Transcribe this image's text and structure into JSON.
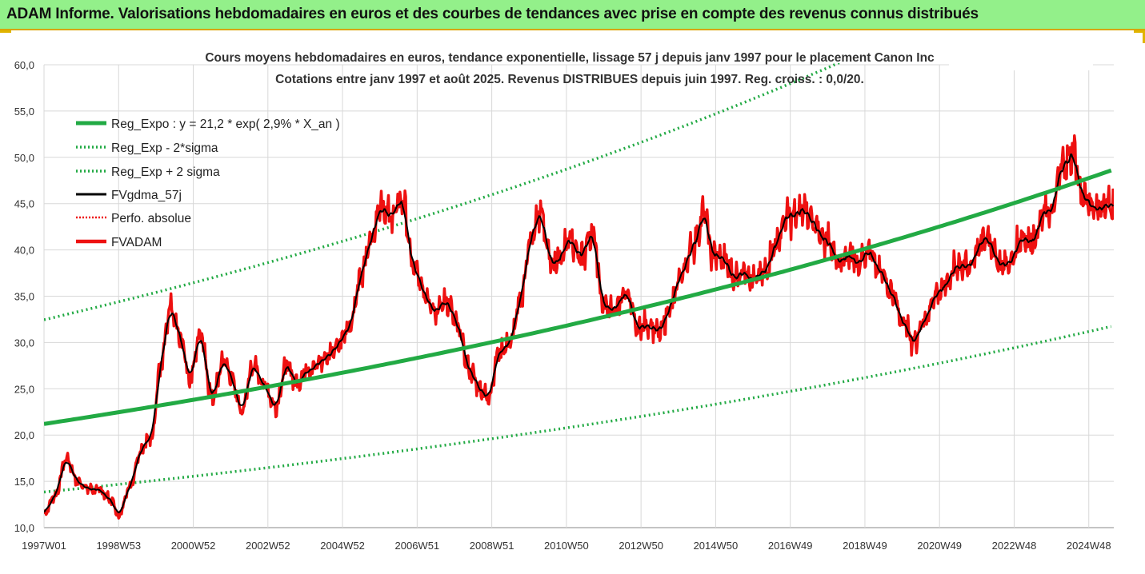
{
  "banner": {
    "title": "ADAM Informe. Valorisations hebdomadaires en euros et des courbes de tendances avec prise en compte des revenus connus distribués"
  },
  "chart_data": {
    "type": "line",
    "subtitle_lines": [
      "Cours moyens hebdomadaires en euros, tendance exponentielle, lissage 57 j depuis janv 1997 pour le placement Canon Inc",
      "Cotations entre janv 1997 et août 2025. Revenus DISTRIBUES depuis juin 1997. Reg. croiss. : 0,0/20."
    ],
    "x_tick_labels": [
      "1997W01",
      "1998W53",
      "2000W52",
      "2002W52",
      "2004W52",
      "2006W51",
      "2008W51",
      "2010W50",
      "2012W50",
      "2014W50",
      "2016W49",
      "2018W49",
      "2020W49",
      "2022W48",
      "2024W48"
    ],
    "x_range_years": [
      1997.0,
      2025.67
    ],
    "y_tick_labels": [
      "10,0",
      "15,0",
      "20,0",
      "25,0",
      "30,0",
      "35,0",
      "40,0",
      "45,0",
      "50,0",
      "55,0",
      "60,0"
    ],
    "ylim": [
      10,
      60
    ],
    "grid": true,
    "legend_position": "top-left",
    "regression": {
      "a": 21.2,
      "growth_rate": 0.029,
      "sigma_lower_factor": 0.653,
      "sigma_upper_factor": 1.531
    },
    "series": [
      {
        "name": "Reg_Expo : y = 21,2 * exp( 2,9% *  X_an )",
        "style": "solid-thick",
        "color": "#22aa44"
      },
      {
        "name": "Reg_Exp - 2*sigma",
        "style": "dotted",
        "color": "#22aa44"
      },
      {
        "name": "Reg_Exp + 2 sigma",
        "style": "dotted",
        "color": "#22aa44"
      },
      {
        "name": "FVgdma_57j",
        "style": "solid",
        "color": "#000000"
      },
      {
        "name": "Perfo. absolue",
        "style": "dotted",
        "color": "#ee1111"
      },
      {
        "name": "FVADAM",
        "style": "solid-thick",
        "color": "#ee1111"
      }
    ],
    "fvadam_anchors": {
      "x_year": [
        1997.0,
        1997.3,
        1997.6,
        1997.9,
        1998.2,
        1998.5,
        1998.8,
        1999.0,
        1999.3,
        1999.6,
        1999.9,
        2000.1,
        2000.4,
        2000.7,
        2000.9,
        2001.2,
        2001.5,
        2001.8,
        2002.0,
        2002.3,
        2002.6,
        2002.9,
        2003.2,
        2003.5,
        2003.8,
        2004.0,
        2004.3,
        2004.6,
        2004.9,
        2005.2,
        2005.5,
        2005.8,
        2006.0,
        2006.3,
        2006.6,
        2006.9,
        2007.2,
        2007.5,
        2007.8,
        2008.1,
        2008.4,
        2008.7,
        2008.9,
        2009.2,
        2009.5,
        2009.8,
        2010.0,
        2010.3,
        2010.6,
        2010.8,
        2011.1,
        2011.4,
        2011.7,
        2012.0,
        2012.3,
        2012.6,
        2012.9,
        2013.2,
        2013.5,
        2013.8,
        2014.1,
        2014.4,
        2014.7,
        2014.9,
        2015.2,
        2015.5,
        2015.8,
        2016.0,
        2016.3,
        2016.6,
        2016.9,
        2017.1,
        2017.4,
        2017.7,
        2018.0,
        2018.3,
        2018.6,
        2018.9,
        2019.1,
        2019.4,
        2019.7,
        2020.0,
        2020.3,
        2020.6,
        2020.9,
        2021.2,
        2021.5,
        2021.8,
        2022.0,
        2022.3,
        2022.6,
        2022.9,
        2023.2,
        2023.5,
        2023.8,
        2024.0,
        2024.3,
        2024.6,
        2024.8,
        2025.0,
        2025.3,
        2025.67
      ],
      "y": [
        11.5,
        13.5,
        17.5,
        15.0,
        14.2,
        14.0,
        13.0,
        11.2,
        14.5,
        18.5,
        20.0,
        27.0,
        33.5,
        30.0,
        26.0,
        31.0,
        24.0,
        28.0,
        26.5,
        22.5,
        27.5,
        25.5,
        23.0,
        27.5,
        25.5,
        27.0,
        27.5,
        28.5,
        30.0,
        31.5,
        37.5,
        41.5,
        45.0,
        43.5,
        45.5,
        38.0,
        35.5,
        33.5,
        34.5,
        31.5,
        27.0,
        25.0,
        24.0,
        29.0,
        30.0,
        35.0,
        40.5,
        44.0,
        38.5,
        39.0,
        41.5,
        39.0,
        42.0,
        34.0,
        33.5,
        35.5,
        31.5,
        32.0,
        31.0,
        34.0,
        37.5,
        40.5,
        44.0,
        39.5,
        39.0,
        37.0,
        38.0,
        36.5,
        37.5,
        40.5,
        43.5,
        43.5,
        44.5,
        42.0,
        41.0,
        39.0,
        39.5,
        38.5,
        40.0,
        38.0,
        35.5,
        32.5,
        30.0,
        32.5,
        35.0,
        36.5,
        38.5,
        38.0,
        40.0,
        41.5,
        38.5,
        38.5,
        41.5,
        41.0,
        44.0,
        44.0,
        49.0,
        50.5,
        46.0,
        45.0,
        44.5,
        45.0
      ]
    }
  }
}
